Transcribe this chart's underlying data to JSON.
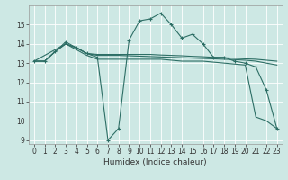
{
  "xlabel": "Humidex (Indice chaleur)",
  "bg_color": "#cde8e4",
  "grid_color": "#ffffff",
  "line_color": "#2d6e65",
  "xlim": [
    -0.5,
    23.5
  ],
  "ylim": [
    8.8,
    16.0
  ],
  "yticks": [
    9,
    10,
    11,
    12,
    13,
    14,
    15
  ],
  "xticks": [
    0,
    1,
    2,
    3,
    4,
    5,
    6,
    7,
    8,
    9,
    10,
    11,
    12,
    13,
    14,
    15,
    16,
    17,
    18,
    19,
    20,
    21,
    22,
    23
  ],
  "line1_x": [
    0,
    1,
    2,
    3,
    4,
    5,
    6,
    7,
    8,
    9,
    10,
    11,
    12,
    13,
    14,
    15,
    16,
    17,
    18,
    19,
    20,
    21,
    22,
    23
  ],
  "line1_y": [
    13.1,
    13.1,
    13.6,
    14.1,
    13.8,
    13.5,
    13.3,
    9.0,
    9.6,
    14.2,
    15.2,
    15.3,
    15.6,
    15.0,
    14.3,
    14.5,
    14.0,
    13.3,
    13.3,
    13.1,
    13.0,
    12.8,
    11.6,
    9.6
  ],
  "line2_x": [
    0,
    1,
    2,
    3,
    4,
    5,
    6,
    7,
    8,
    9,
    10,
    11,
    12,
    13,
    14,
    15,
    16,
    17,
    18,
    19,
    20,
    21,
    22,
    23
  ],
  "line2_y": [
    13.1,
    13.1,
    13.6,
    14.0,
    13.8,
    13.5,
    13.45,
    13.45,
    13.45,
    13.45,
    13.45,
    13.45,
    13.42,
    13.4,
    13.38,
    13.35,
    13.33,
    13.3,
    13.28,
    13.25,
    13.22,
    13.2,
    13.15,
    13.1
  ],
  "line3_x": [
    0,
    1,
    2,
    3,
    4,
    5,
    6,
    7,
    8,
    9,
    10,
    11,
    12,
    13,
    14,
    15,
    16,
    17,
    18,
    19,
    20,
    21,
    22,
    23
  ],
  "line3_y": [
    13.1,
    13.1,
    13.6,
    14.0,
    13.8,
    13.5,
    13.4,
    13.4,
    13.4,
    13.38,
    13.36,
    13.34,
    13.32,
    13.3,
    13.28,
    13.26,
    13.24,
    13.22,
    13.2,
    13.18,
    13.15,
    13.1,
    13.0,
    12.9
  ],
  "line4_x": [
    0,
    3,
    5,
    6,
    9,
    12,
    14,
    16,
    18,
    20,
    21,
    22,
    23
  ],
  "line4_y": [
    13.1,
    14.0,
    13.4,
    13.2,
    13.2,
    13.2,
    13.1,
    13.1,
    13.0,
    12.9,
    10.2,
    10.0,
    9.6
  ],
  "tick_fontsize": 5.5,
  "xlabel_fontsize": 6.5
}
